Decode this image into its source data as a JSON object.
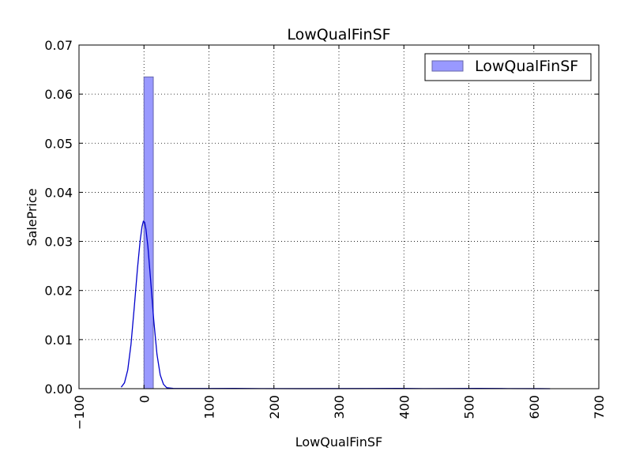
{
  "chart_data": {
    "type": "bar",
    "title": "LowQualFinSF",
    "xlabel": "LowQualFinSF",
    "ylabel": "SalePrice",
    "xlim": [
      -100,
      700
    ],
    "ylim": [
      0,
      0.07
    ],
    "xticks": [
      -100,
      0,
      100,
      200,
      300,
      400,
      500,
      600,
      700
    ],
    "yticks": [
      0.0,
      0.01,
      0.02,
      0.03,
      0.04,
      0.05,
      0.06,
      0.07
    ],
    "xtick_labels": [
      "−100",
      "0",
      "100",
      "200",
      "300",
      "400",
      "500",
      "600",
      "700"
    ],
    "ytick_labels": [
      "0.00",
      "0.01",
      "0.02",
      "0.03",
      "0.04",
      "0.05",
      "0.06",
      "0.07"
    ],
    "grid": true,
    "legend": {
      "position": "top-right",
      "entries": [
        "LowQualFinSF"
      ]
    },
    "histogram": {
      "name": "LowQualFinSF",
      "color": "#9999ff",
      "edge_color": "#6666aa",
      "bins": [
        {
          "x0": 0,
          "x1": 14.3,
          "density": 0.0635
        }
      ]
    },
    "kde": {
      "color": "#0000cc",
      "points": [
        [
          -35,
          0.0003
        ],
        [
          -30,
          0.0012
        ],
        [
          -25,
          0.0038
        ],
        [
          -20,
          0.009
        ],
        [
          -15,
          0.0165
        ],
        [
          -10,
          0.0245
        ],
        [
          -6,
          0.03
        ],
        [
          -3,
          0.033
        ],
        [
          -1,
          0.0341
        ],
        [
          1,
          0.0339
        ],
        [
          3,
          0.0325
        ],
        [
          6,
          0.029
        ],
        [
          10,
          0.0225
        ],
        [
          15,
          0.014
        ],
        [
          20,
          0.007
        ],
        [
          25,
          0.0028
        ],
        [
          30,
          0.0009
        ],
        [
          35,
          0.0002
        ],
        [
          45,
          5e-05
        ],
        [
          100,
          3e-05
        ],
        [
          140,
          5e-05
        ],
        [
          180,
          2e-05
        ],
        [
          250,
          1e-05
        ],
        [
          350,
          3e-05
        ],
        [
          390,
          6e-05
        ],
        [
          430,
          2e-05
        ],
        [
          480,
          3e-05
        ],
        [
          515,
          6e-05
        ],
        [
          560,
          2e-05
        ],
        [
          610,
          1e-05
        ],
        [
          625,
          0.0
        ]
      ]
    }
  }
}
